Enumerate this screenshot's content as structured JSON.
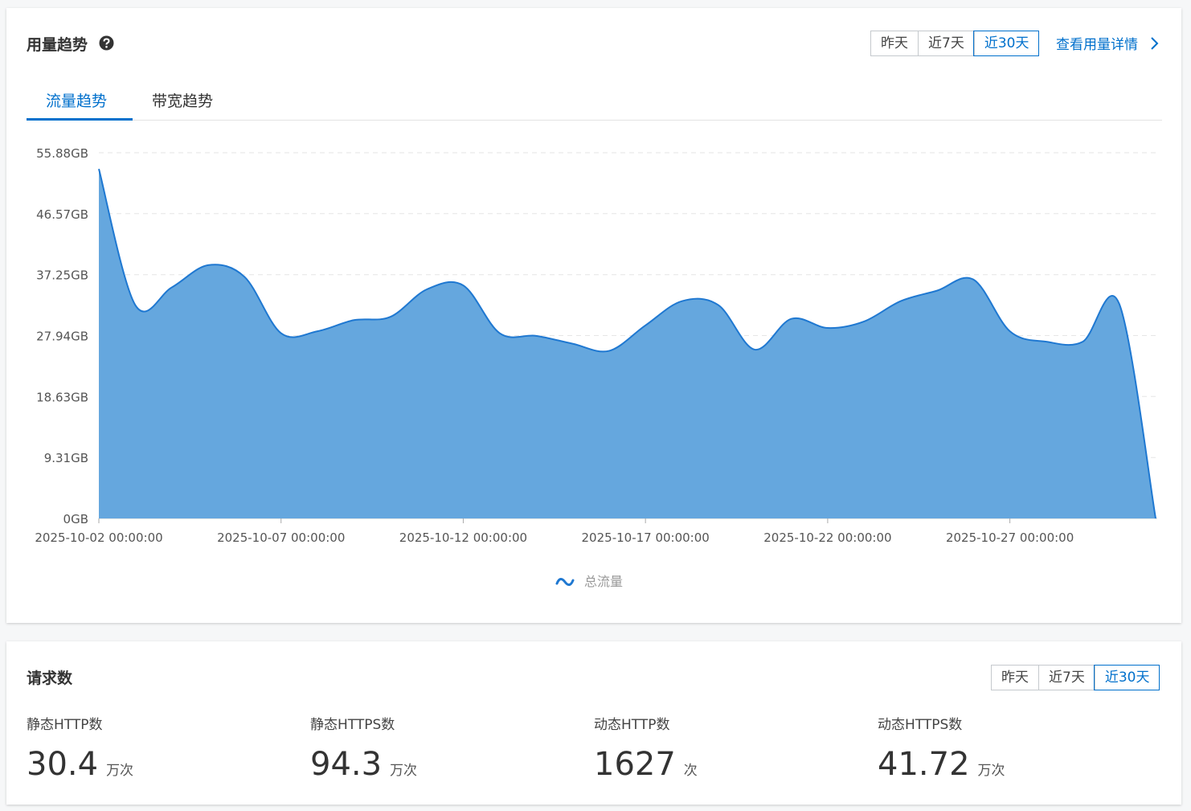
{
  "usage": {
    "title": "用量趋势",
    "ranges": [
      "昨天",
      "近7天",
      "近30天"
    ],
    "details_link": "查看用量详情",
    "tabs": [
      "流量趋势",
      "带宽趋势"
    ]
  },
  "chart_data": {
    "type": "area",
    "x": [
      "2025-10-02 00:00:00",
      "2025-10-03 00:00:00",
      "2025-10-04 00:00:00",
      "2025-10-05 00:00:00",
      "2025-10-06 00:00:00",
      "2025-10-07 00:00:00",
      "2025-10-08 00:00:00",
      "2025-10-09 00:00:00",
      "2025-10-10 00:00:00",
      "2025-10-11 00:00:00",
      "2025-10-12 00:00:00",
      "2025-10-13 00:00:00",
      "2025-10-14 00:00:00",
      "2025-10-15 00:00:00",
      "2025-10-16 00:00:00",
      "2025-10-17 00:00:00",
      "2025-10-18 00:00:00",
      "2025-10-19 00:00:00",
      "2025-10-20 00:00:00",
      "2025-10-21 00:00:00",
      "2025-10-22 00:00:00",
      "2025-10-23 00:00:00",
      "2025-10-24 00:00:00",
      "2025-10-25 00:00:00",
      "2025-10-26 00:00:00",
      "2025-10-27 00:00:00",
      "2025-10-28 00:00:00",
      "2025-10-29 00:00:00",
      "2025-10-30 00:00:00",
      "2025-10-31 00:00:00"
    ],
    "xticks": [
      "2025-10-02 00:00:00",
      "2025-10-07 00:00:00",
      "2025-10-12 00:00:00",
      "2025-10-17 00:00:00",
      "2025-10-22 00:00:00",
      "2025-10-27 00:00:00"
    ],
    "series": [
      {
        "name": "总流量",
        "color": "#1f78d1",
        "fill": "#65a7de",
        "values": [
          53.4,
          32.6,
          35.3,
          38.7,
          36.9,
          28.3,
          28.6,
          30.3,
          30.8,
          35.0,
          35.6,
          28.3,
          27.9,
          26.7,
          25.6,
          29.5,
          33.2,
          32.6,
          25.8,
          30.5,
          29.1,
          30.1,
          33.2,
          34.8,
          36.5,
          28.6,
          27.0,
          27.0,
          32.8,
          0
        ]
      }
    ],
    "ylim": [
      0,
      55.88
    ],
    "yticks": [
      {
        "value": 0,
        "label": "0GB"
      },
      {
        "value": 9.31,
        "label": "9.31GB"
      },
      {
        "value": 18.63,
        "label": "18.63GB"
      },
      {
        "value": 27.94,
        "label": "27.94GB"
      },
      {
        "value": 37.25,
        "label": "37.25GB"
      },
      {
        "value": 46.57,
        "label": "46.57GB"
      },
      {
        "value": 55.88,
        "label": "55.88GB"
      }
    ],
    "grid": true
  },
  "requests": {
    "title": "请求数",
    "ranges": [
      "昨天",
      "近7天",
      "近30天"
    ],
    "metrics": [
      {
        "label": "静态HTTP数",
        "value": 30.4,
        "unit": "万次"
      },
      {
        "label": "静态HTTPS数",
        "value": 94.3,
        "unit": "万次"
      },
      {
        "label": "动态HTTP数",
        "value": 1627,
        "unit": "次"
      },
      {
        "label": "动态HTTPS数",
        "value": 41.72,
        "unit": "万次"
      }
    ]
  }
}
